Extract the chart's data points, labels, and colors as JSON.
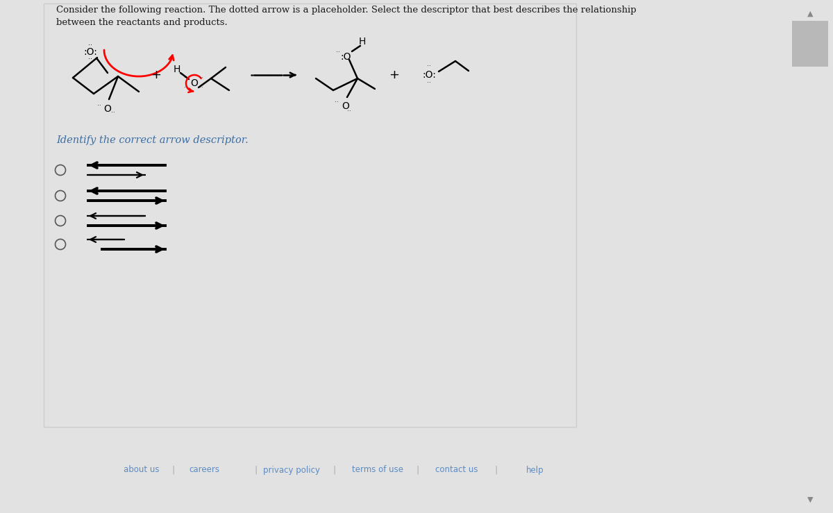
{
  "bg_outer": "#e2e2e2",
  "bg_panel": "#ffffff",
  "bg_footer": "#ebebeb",
  "text_blue": "#3a6ea5",
  "text_black": "#1a1a1a",
  "header_line1": "Consider the following reaction. The dotted arrow is a placeholder. Select the descriptor that best describes the relationship",
  "header_line2": "between the reactants and products.",
  "subheader": "Identify the correct arrow descriptor.",
  "footer_links": [
    "about us",
    "careers",
    "privacy policy",
    "terms of use",
    "contact us",
    "help"
  ]
}
